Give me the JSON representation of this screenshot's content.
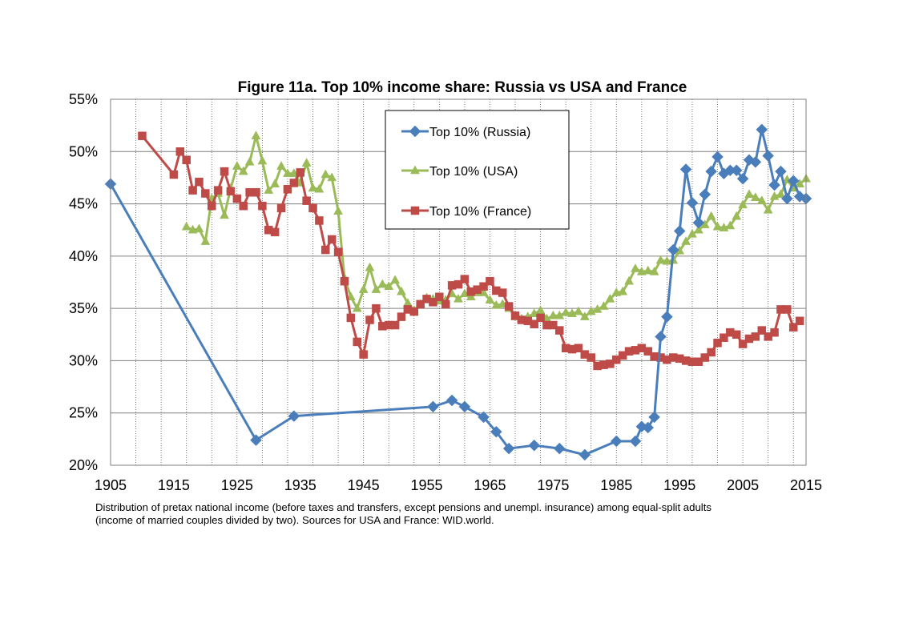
{
  "chart_data": {
    "type": "line",
    "title": "Figure 11a. Top 10% income share: Russia vs USA and France",
    "xlim": [
      1905,
      2015
    ],
    "ylim": [
      20,
      55
    ],
    "x_ticks": [
      1905,
      1915,
      1925,
      1935,
      1945,
      1955,
      1965,
      1975,
      1985,
      1995,
      2005,
      2015
    ],
    "x_tick_labels": [
      "1905",
      "1915",
      "1925",
      "1935",
      "1945",
      "1955",
      "1965",
      "1975",
      "1985",
      "1995",
      "2005",
      "2015"
    ],
    "y_ticks": [
      20,
      25,
      30,
      35,
      40,
      45,
      50,
      55
    ],
    "y_tick_labels": [
      "20%",
      "25%",
      "30%",
      "35%",
      "40%",
      "45%",
      "50%",
      "55%"
    ],
    "grid": {
      "vertical_dotted_yearly": true,
      "horizontal": true
    },
    "legend_position": "top-center",
    "series": [
      {
        "name": "Top 10% (Russia)",
        "color": "#4a7ebb",
        "marker": "diamond",
        "points": [
          [
            1905,
            46.9
          ],
          [
            1928,
            22.4
          ],
          [
            1934,
            24.7
          ],
          [
            1956,
            25.6
          ],
          [
            1959,
            26.2
          ],
          [
            1961,
            25.6
          ],
          [
            1964,
            24.6
          ],
          [
            1966,
            23.2
          ],
          [
            1968,
            21.6
          ],
          [
            1972,
            21.9
          ],
          [
            1976,
            21.6
          ],
          [
            1980,
            21.0
          ],
          [
            1985,
            22.3
          ],
          [
            1988,
            22.3
          ],
          [
            1989,
            23.7
          ],
          [
            1990,
            23.6
          ],
          [
            1991,
            24.6
          ],
          [
            1992,
            32.3
          ],
          [
            1993,
            34.2
          ],
          [
            1994,
            40.6
          ],
          [
            1995,
            42.4
          ],
          [
            1996,
            48.3
          ],
          [
            1997,
            45.1
          ],
          [
            1998,
            43.2
          ],
          [
            1999,
            45.9
          ],
          [
            2000,
            48.1
          ],
          [
            2001,
            49.5
          ],
          [
            2002,
            47.9
          ],
          [
            2003,
            48.2
          ],
          [
            2004,
            48.2
          ],
          [
            2005,
            47.4
          ],
          [
            2006,
            49.2
          ],
          [
            2007,
            49.0
          ],
          [
            2008,
            52.1
          ],
          [
            2009,
            49.6
          ],
          [
            2010,
            46.8
          ],
          [
            2011,
            48.1
          ],
          [
            2012,
            45.5
          ],
          [
            2013,
            47.2
          ],
          [
            2014,
            45.7
          ],
          [
            2015,
            45.5
          ]
        ]
      },
      {
        "name": "Top 10% (USA)",
        "color": "#9bbb59",
        "marker": "triangle",
        "points": [
          [
            1917,
            42.8
          ],
          [
            1918,
            42.5
          ],
          [
            1919,
            42.6
          ],
          [
            1920,
            41.4
          ],
          [
            1921,
            45.5
          ],
          [
            1922,
            46.0
          ],
          [
            1923,
            43.9
          ],
          [
            1924,
            46.5
          ],
          [
            1925,
            48.6
          ],
          [
            1926,
            48.1
          ],
          [
            1927,
            49.0
          ],
          [
            1928,
            51.5
          ],
          [
            1929,
            49.1
          ],
          [
            1930,
            46.3
          ],
          [
            1931,
            46.9
          ],
          [
            1932,
            48.6
          ],
          [
            1933,
            47.9
          ],
          [
            1934,
            47.9
          ],
          [
            1935,
            47.0
          ],
          [
            1936,
            48.9
          ],
          [
            1937,
            46.5
          ],
          [
            1938,
            46.4
          ],
          [
            1939,
            47.8
          ],
          [
            1940,
            47.5
          ],
          [
            1941,
            44.3
          ],
          [
            1942,
            37.9
          ],
          [
            1943,
            36.1
          ],
          [
            1944,
            35.0
          ],
          [
            1945,
            36.8
          ],
          [
            1946,
            38.9
          ],
          [
            1947,
            36.8
          ],
          [
            1948,
            37.3
          ],
          [
            1949,
            37.1
          ],
          [
            1950,
            37.7
          ],
          [
            1951,
            36.6
          ],
          [
            1952,
            35.5
          ],
          [
            1953,
            34.8
          ],
          [
            1954,
            35.4
          ],
          [
            1955,
            36.0
          ],
          [
            1956,
            35.9
          ],
          [
            1957,
            35.7
          ],
          [
            1958,
            35.8
          ],
          [
            1959,
            36.4
          ],
          [
            1960,
            35.9
          ],
          [
            1961,
            36.4
          ],
          [
            1962,
            36.1
          ],
          [
            1963,
            36.5
          ],
          [
            1964,
            36.5
          ],
          [
            1965,
            35.8
          ],
          [
            1966,
            35.3
          ],
          [
            1967,
            35.4
          ],
          [
            1968,
            35.0
          ],
          [
            1969,
            34.2
          ],
          [
            1970,
            34.0
          ],
          [
            1971,
            34.2
          ],
          [
            1972,
            34.5
          ],
          [
            1973,
            34.8
          ],
          [
            1974,
            34.0
          ],
          [
            1975,
            34.3
          ],
          [
            1976,
            34.3
          ],
          [
            1977,
            34.6
          ],
          [
            1978,
            34.5
          ],
          [
            1979,
            34.7
          ],
          [
            1980,
            34.2
          ],
          [
            1981,
            34.7
          ],
          [
            1982,
            34.9
          ],
          [
            1983,
            35.2
          ],
          [
            1984,
            35.9
          ],
          [
            1985,
            36.5
          ],
          [
            1986,
            36.6
          ],
          [
            1987,
            37.6
          ],
          [
            1988,
            38.8
          ],
          [
            1989,
            38.5
          ],
          [
            1990,
            38.6
          ],
          [
            1991,
            38.5
          ],
          [
            1992,
            39.6
          ],
          [
            1993,
            39.5
          ],
          [
            1994,
            39.6
          ],
          [
            1995,
            40.5
          ],
          [
            1996,
            41.4
          ],
          [
            1997,
            42.1
          ],
          [
            1998,
            42.5
          ],
          [
            1999,
            43.0
          ],
          [
            2000,
            43.8
          ],
          [
            2001,
            42.8
          ],
          [
            2002,
            42.7
          ],
          [
            2003,
            42.9
          ],
          [
            2004,
            43.8
          ],
          [
            2005,
            44.9
          ],
          [
            2006,
            45.9
          ],
          [
            2007,
            45.6
          ],
          [
            2008,
            45.3
          ],
          [
            2009,
            44.4
          ],
          [
            2010,
            45.7
          ],
          [
            2011,
            45.9
          ],
          [
            2012,
            47.3
          ],
          [
            2013,
            46.5
          ],
          [
            2014,
            46.9
          ],
          [
            2015,
            47.4
          ]
        ]
      },
      {
        "name": "Top 10% (France)",
        "color": "#be4b48",
        "marker": "square",
        "points": [
          [
            1910,
            51.5
          ],
          [
            1915,
            47.8
          ],
          [
            1916,
            50.0
          ],
          [
            1917,
            49.2
          ],
          [
            1918,
            46.3
          ],
          [
            1919,
            47.1
          ],
          [
            1920,
            46.0
          ],
          [
            1921,
            44.8
          ],
          [
            1922,
            46.3
          ],
          [
            1923,
            48.1
          ],
          [
            1924,
            46.2
          ],
          [
            1925,
            45.5
          ],
          [
            1926,
            44.8
          ],
          [
            1927,
            46.1
          ],
          [
            1928,
            46.1
          ],
          [
            1929,
            44.8
          ],
          [
            1930,
            42.5
          ],
          [
            1931,
            42.3
          ],
          [
            1932,
            44.6
          ],
          [
            1933,
            46.4
          ],
          [
            1934,
            47.0
          ],
          [
            1935,
            48.0
          ],
          [
            1936,
            45.3
          ],
          [
            1937,
            44.6
          ],
          [
            1938,
            43.4
          ],
          [
            1939,
            40.6
          ],
          [
            1940,
            41.6
          ],
          [
            1941,
            40.4
          ],
          [
            1942,
            37.6
          ],
          [
            1943,
            34.1
          ],
          [
            1944,
            31.8
          ],
          [
            1945,
            30.6
          ],
          [
            1946,
            33.9
          ],
          [
            1947,
            35.0
          ],
          [
            1948,
            33.3
          ],
          [
            1949,
            33.4
          ],
          [
            1950,
            33.4
          ],
          [
            1951,
            34.2
          ],
          [
            1952,
            34.9
          ],
          [
            1953,
            34.7
          ],
          [
            1954,
            35.4
          ],
          [
            1955,
            35.9
          ],
          [
            1956,
            35.6
          ],
          [
            1957,
            36.1
          ],
          [
            1958,
            35.4
          ],
          [
            1959,
            37.2
          ],
          [
            1960,
            37.3
          ],
          [
            1961,
            37.8
          ],
          [
            1962,
            36.6
          ],
          [
            1963,
            36.8
          ],
          [
            1964,
            37.1
          ],
          [
            1965,
            37.6
          ],
          [
            1966,
            36.7
          ],
          [
            1967,
            36.5
          ],
          [
            1968,
            35.2
          ],
          [
            1969,
            34.3
          ],
          [
            1970,
            33.9
          ],
          [
            1971,
            33.8
          ],
          [
            1972,
            33.5
          ],
          [
            1973,
            34.1
          ],
          [
            1974,
            33.4
          ],
          [
            1975,
            33.4
          ],
          [
            1976,
            32.9
          ],
          [
            1977,
            31.2
          ],
          [
            1978,
            31.1
          ],
          [
            1979,
            31.2
          ],
          [
            1980,
            30.6
          ],
          [
            1981,
            30.3
          ],
          [
            1982,
            29.5
          ],
          [
            1983,
            29.6
          ],
          [
            1984,
            29.7
          ],
          [
            1985,
            30.1
          ],
          [
            1986,
            30.5
          ],
          [
            1987,
            30.9
          ],
          [
            1988,
            31.0
          ],
          [
            1989,
            31.2
          ],
          [
            1990,
            30.9
          ],
          [
            1991,
            30.4
          ],
          [
            1992,
            30.3
          ],
          [
            1993,
            30.1
          ],
          [
            1994,
            30.3
          ],
          [
            1995,
            30.2
          ],
          [
            1996,
            30.0
          ],
          [
            1997,
            29.9
          ],
          [
            1998,
            29.9
          ],
          [
            1999,
            30.3
          ],
          [
            2000,
            30.8
          ],
          [
            2001,
            31.7
          ],
          [
            2002,
            32.2
          ],
          [
            2003,
            32.7
          ],
          [
            2004,
            32.5
          ],
          [
            2005,
            31.6
          ],
          [
            2006,
            32.1
          ],
          [
            2007,
            32.3
          ],
          [
            2008,
            32.9
          ],
          [
            2009,
            32.3
          ],
          [
            2010,
            32.7
          ],
          [
            2011,
            34.9
          ],
          [
            2012,
            34.9
          ],
          [
            2013,
            33.2
          ],
          [
            2014,
            33.8
          ]
        ]
      }
    ]
  },
  "caption": {
    "line1": "Distribution of pretax national income (before taxes and transfers, except pensions and unempl. insurance) among equal-split adults",
    "line2": "(income of married couples divided by two). Sources for USA and France: WID.world."
  }
}
